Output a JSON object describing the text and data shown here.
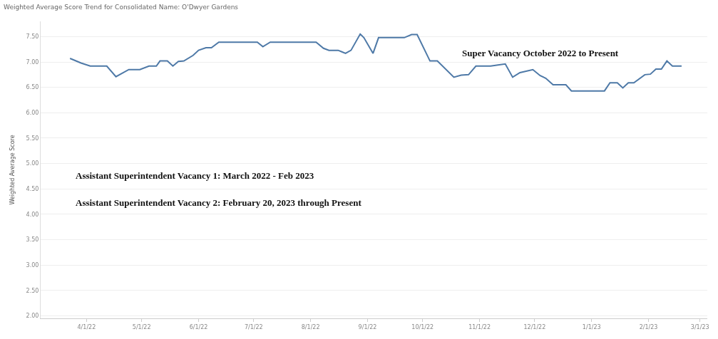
{
  "chart_data": {
    "type": "line",
    "title": "Weighted Average Score Trend for Consolidated Name: O'Dwyer Gardens",
    "ylabel": "Weighted Average Score",
    "x": [
      "2022-03-23",
      "2022-03-29",
      "2022-04-03",
      "2022-04-12",
      "2022-04-17",
      "2022-04-24",
      "2022-04-30",
      "2022-05-05",
      "2022-05-09",
      "2022-05-11",
      "2022-05-15",
      "2022-05-18",
      "2022-05-21",
      "2022-05-24",
      "2022-05-29",
      "2022-06-01",
      "2022-06-05",
      "2022-06-08",
      "2022-06-12",
      "2022-07-03",
      "2022-07-06",
      "2022-07-10",
      "2022-08-04",
      "2022-08-08",
      "2022-08-11",
      "2022-08-16",
      "2022-08-18",
      "2022-08-20",
      "2022-08-23",
      "2022-08-28",
      "2022-08-30",
      "2022-09-04",
      "2022-09-07",
      "2022-09-21",
      "2022-09-25",
      "2022-09-28",
      "2022-10-05",
      "2022-10-09",
      "2022-10-18",
      "2022-10-22",
      "2022-10-26",
      "2022-10-30",
      "2022-11-07",
      "2022-11-11",
      "2022-11-15",
      "2022-11-19",
      "2022-11-23",
      "2022-11-30",
      "2022-12-04",
      "2022-12-07",
      "2022-12-11",
      "2022-12-18",
      "2022-12-21",
      "2023-01-08",
      "2023-01-11",
      "2023-01-15",
      "2023-01-18",
      "2023-01-21",
      "2023-01-24",
      "2023-01-30",
      "2023-02-02",
      "2023-02-05",
      "2023-02-08",
      "2023-02-11",
      "2023-02-14",
      "2023-02-19"
    ],
    "series": [
      {
        "color": "#4e79a7",
        "values": [
          7.07,
          6.98,
          6.92,
          6.92,
          6.71,
          6.85,
          6.85,
          6.92,
          6.92,
          7.02,
          7.02,
          6.92,
          7.01,
          7.02,
          7.13,
          7.23,
          7.28,
          7.28,
          7.39,
          7.39,
          7.3,
          7.39,
          7.39,
          7.27,
          7.23,
          7.23,
          7.2,
          7.17,
          7.23,
          7.55,
          7.48,
          7.17,
          7.48,
          7.48,
          7.54,
          7.54,
          7.02,
          7.02,
          6.7,
          6.74,
          6.75,
          6.92,
          6.92,
          6.94,
          6.96,
          6.7,
          6.79,
          6.85,
          6.73,
          6.68,
          6.55,
          6.55,
          6.43,
          6.43,
          6.59,
          6.59,
          6.49,
          6.59,
          6.59,
          6.75,
          6.76,
          6.86,
          6.86,
          7.02,
          6.92,
          6.92
        ]
      }
    ],
    "xlim": [
      "2022-03-07",
      "2023-03-05"
    ],
    "xticks": [
      {
        "value": "2022-04-01",
        "label": "4/1/22"
      },
      {
        "value": "2022-05-01",
        "label": "5/1/22"
      },
      {
        "value": "2022-06-01",
        "label": "6/1/22"
      },
      {
        "value": "2022-07-01",
        "label": "7/1/22"
      },
      {
        "value": "2022-08-01",
        "label": "8/1/22"
      },
      {
        "value": "2022-09-01",
        "label": "9/1/22"
      },
      {
        "value": "2022-10-01",
        "label": "10/1/22"
      },
      {
        "value": "2022-11-01",
        "label": "11/1/22"
      },
      {
        "value": "2022-12-01",
        "label": "12/1/22"
      },
      {
        "value": "2023-01-01",
        "label": "1/1/23"
      },
      {
        "value": "2023-02-01",
        "label": "2/1/23"
      },
      {
        "value": "2023-03-01",
        "label": "3/1/23"
      }
    ],
    "ylim": [
      1.95,
      7.8
    ],
    "yticks": [
      {
        "value": 2,
        "label": "2.00"
      },
      {
        "value": 2.5,
        "label": "2.50"
      },
      {
        "value": 3,
        "label": "3.00"
      },
      {
        "value": 3.5,
        "label": "3.50"
      },
      {
        "value": 4,
        "label": "4.00"
      },
      {
        "value": 4.5,
        "label": "4.50"
      },
      {
        "value": 5,
        "label": "5.00"
      },
      {
        "value": 5.5,
        "label": "5.50"
      },
      {
        "value": 6,
        "label": "6.00"
      },
      {
        "value": 6.5,
        "label": "6.50"
      },
      {
        "value": 7,
        "label": "7.00"
      },
      {
        "value": 7.5,
        "label": "7.50"
      }
    ],
    "grid": "y",
    "marker": "none",
    "line_style": "solid",
    "annotations": [
      "Super Vacancy October 2022 to Present",
      "Assistant Superintendent Vacancy 1: March 2022 - Feb 2023",
      "Assistant Superintendent Vacancy 2: February 20, 2023 through Present"
    ]
  }
}
